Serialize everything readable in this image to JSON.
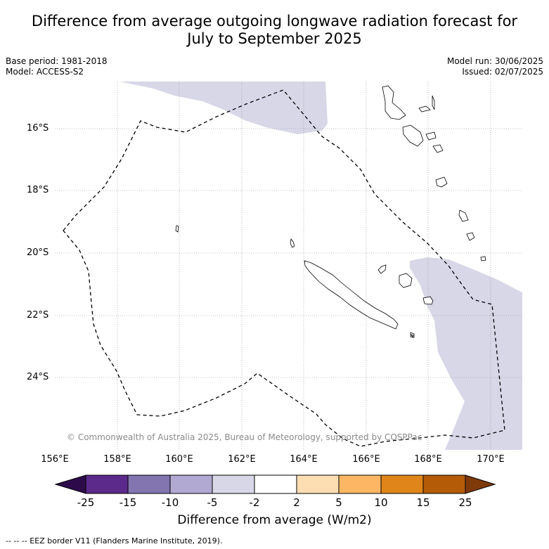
{
  "title_line1": "Difference from average outgoing longwave radiation forecast for",
  "title_line2": "July to September 2025",
  "meta": {
    "base_period": "Base period: 1981-2018",
    "model": "Model: ACCESS-S2",
    "model_run": "Model run: 30/06/2025",
    "issued": "Issued: 02/07/2025"
  },
  "map": {
    "lat_labels": [
      "16°S",
      "18°S",
      "20°S",
      "22°S",
      "24°S"
    ],
    "lon_labels": [
      "156°E",
      "158°E",
      "160°E",
      "162°E",
      "164°E",
      "166°E",
      "168°E",
      "170°E"
    ],
    "copyright": "© Commonwealth of Australia 2025, Bureau of Meteorology, supported by COSPPac",
    "anomaly_shading_color": "#d7d7e8",
    "gridlines": true
  },
  "colorbar": {
    "ticks": [
      "-25",
      "-15",
      "-10",
      "-5",
      "-2",
      "2",
      "5",
      "10",
      "15",
      "25"
    ],
    "colors": [
      "#2d0b4b",
      "#5b2a8b",
      "#8275b0",
      "#b2a9d2",
      "#d7d7e8",
      "#ffffff",
      "#fddeb3",
      "#fdb764",
      "#e08519",
      "#b35b07",
      "#7f3a0a"
    ],
    "label": "Difference from average (W/m2)"
  },
  "eez_note": "--  --  -- EEZ border V11 (Flanders Marine Institute, 2019)."
}
